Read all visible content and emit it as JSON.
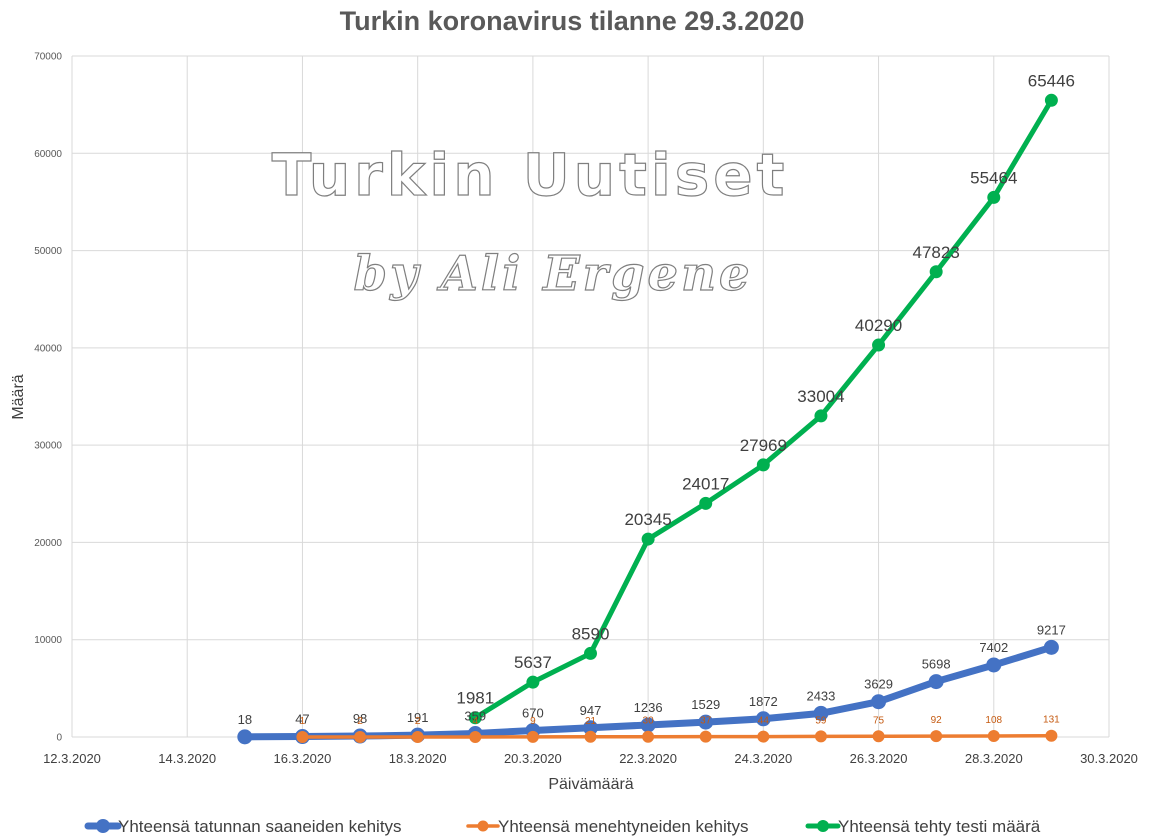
{
  "chart_data": {
    "type": "line",
    "title": "Turkin koronavirus tilanne 29.3.2020",
    "xlabel": "Päivämäärä",
    "ylabel": "Määrä",
    "xlim": [
      "12.3.2020",
      "30.3.2020"
    ],
    "ylim": [
      0,
      70000
    ],
    "y_ticks": [
      0,
      10000,
      20000,
      30000,
      40000,
      50000,
      60000,
      70000
    ],
    "x_ticks": [
      "12.3.2020",
      "14.3.2020",
      "16.3.2020",
      "18.3.2020",
      "20.3.2020",
      "22.3.2020",
      "24.3.2020",
      "26.3.2020",
      "28.3.2020",
      "30.3.2020"
    ],
    "grid": true,
    "legend_position": "bottom",
    "series": [
      {
        "name": "Yhteensä tatunnan saaneiden kehitys",
        "color": "#4472c4",
        "x": [
          "15.3.2020",
          "16.3.2020",
          "17.3.2020",
          "18.3.2020",
          "19.3.2020",
          "20.3.2020",
          "21.3.2020",
          "22.3.2020",
          "23.3.2020",
          "24.3.2020",
          "25.3.2020",
          "26.3.2020",
          "27.3.2020",
          "28.3.2020",
          "29.3.2020"
        ],
        "values": [
          18,
          47,
          98,
          191,
          359,
          670,
          947,
          1236,
          1529,
          1872,
          2433,
          3629,
          5698,
          7402,
          9217
        ],
        "labels": [
          "18",
          "47",
          "98",
          "191",
          "359",
          "670",
          "947",
          "1236",
          "1529",
          "1872",
          "2433",
          "3629",
          "5698",
          "7402",
          "9217"
        ]
      },
      {
        "name": "Yhteensä menehtyneiden kehitys",
        "color": "#ed7d31",
        "x": [
          "16.3.2020",
          "17.3.2020",
          "18.3.2020",
          "19.3.2020",
          "20.3.2020",
          "21.3.2020",
          "22.3.2020",
          "23.3.2020",
          "24.3.2020",
          "25.3.2020",
          "26.3.2020",
          "27.3.2020",
          "28.3.2020",
          "29.3.2020"
        ],
        "values": [
          1,
          2,
          2,
          4,
          9,
          21,
          30,
          37,
          44,
          59,
          75,
          92,
          108,
          131
        ],
        "labels": [
          "1",
          "2",
          "2",
          "4",
          "9",
          "21",
          "30",
          "37",
          "44",
          "59",
          "75",
          "92",
          "108",
          "131"
        ]
      },
      {
        "name": "Yhteensä tehty testi määrä",
        "color": "#00b050",
        "x": [
          "19.3.2020",
          "20.3.2020",
          "21.3.2020",
          "22.3.2020",
          "23.3.2020",
          "24.3.2020",
          "25.3.2020",
          "26.3.2020",
          "27.3.2020",
          "28.3.2020",
          "29.3.2020"
        ],
        "values": [
          1981,
          5637,
          8590,
          20345,
          24017,
          27969,
          33004,
          40290,
          47823,
          55464,
          65446
        ],
        "labels": [
          "1981",
          "5637",
          "8590",
          "20345",
          "24017",
          "27969",
          "33004",
          "40290",
          "47823",
          "55464",
          "65446"
        ]
      }
    ]
  },
  "watermark": {
    "line1": "Turkin Uutiset",
    "line2": "by Ali Ergene"
  }
}
